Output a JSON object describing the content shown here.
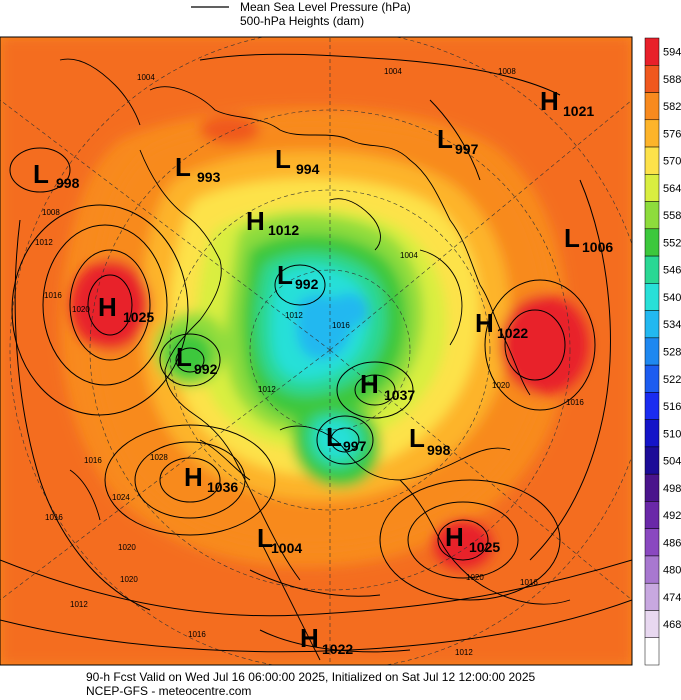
{
  "header": {
    "line1": "Mean Sea Level Pressure (hPa)",
    "line2": "500-hPa Heights (dam)"
  },
  "footer": {
    "line1": "90-h Fcst Valid on Wed Jul 16 06:00:00 2025, Initialized on Sat Jul 12 12:00:00 2025",
    "line2": "NCEP-GFS - meteocentre.com"
  },
  "colorbar": {
    "levels": [
      {
        "value": "594",
        "color": "#e8202a"
      },
      {
        "value": "588",
        "color": "#f0581e"
      },
      {
        "value": "582",
        "color": "#f88a1e"
      },
      {
        "value": "576",
        "color": "#fdb42a"
      },
      {
        "value": "570",
        "color": "#fde24a"
      },
      {
        "value": "564",
        "color": "#d9ee40"
      },
      {
        "value": "558",
        "color": "#8edc3c"
      },
      {
        "value": "552",
        "color": "#3cc83c"
      },
      {
        "value": "546",
        "color": "#2ad894"
      },
      {
        "value": "540",
        "color": "#28e0d8"
      },
      {
        "value": "534",
        "color": "#22b8f0"
      },
      {
        "value": "528",
        "color": "#1e88f0"
      },
      {
        "value": "522",
        "color": "#1c5cf0"
      },
      {
        "value": "516",
        "color": "#1a2cf0"
      },
      {
        "value": "510",
        "color": "#1414c8"
      },
      {
        "value": "504",
        "color": "#1c0c98"
      },
      {
        "value": "498",
        "color": "#4a148c"
      },
      {
        "value": "492",
        "color": "#6a28a8"
      },
      {
        "value": "486",
        "color": "#8a48c0"
      },
      {
        "value": "480",
        "color": "#a878d0"
      },
      {
        "value": "474",
        "color": "#c8a8e0"
      },
      {
        "value": "468",
        "color": "#e8d8f0"
      },
      {
        "value": "",
        "color": "#ffffff"
      }
    ]
  },
  "systems": [
    {
      "type": "L",
      "value": "998"
    },
    {
      "type": "L",
      "value": "993"
    },
    {
      "type": "L",
      "value": "994"
    },
    {
      "type": "L",
      "value": "997"
    },
    {
      "type": "H",
      "value": "1021"
    },
    {
      "type": "L",
      "value": "1006"
    },
    {
      "type": "H",
      "value": "1012"
    },
    {
      "type": "L",
      "value": "992"
    },
    {
      "type": "H",
      "value": "1025"
    },
    {
      "type": "L",
      "value": "992"
    },
    {
      "type": "H",
      "value": "1022"
    },
    {
      "type": "H",
      "value": "1037"
    },
    {
      "type": "L",
      "value": "997"
    },
    {
      "type": "L",
      "value": "998"
    },
    {
      "type": "H",
      "value": "1036"
    },
    {
      "type": "L",
      "value": "1004"
    },
    {
      "type": "H",
      "value": "1025"
    },
    {
      "type": "H",
      "value": "1022"
    }
  ],
  "isobar_labels": [
    "1004",
    "1004",
    "1008",
    "1008",
    "1012",
    "1016",
    "1020",
    "1016",
    "1020",
    "1016",
    "1012",
    "1016",
    "1020",
    "1028",
    "1024",
    "1016",
    "1020",
    "1012",
    "1016",
    "1012",
    "1004",
    "1016",
    "1020",
    "1012"
  ],
  "colors": {
    "background_warm": "#f88a1e",
    "background_hot": "#e8202a",
    "contour": "#000000"
  }
}
